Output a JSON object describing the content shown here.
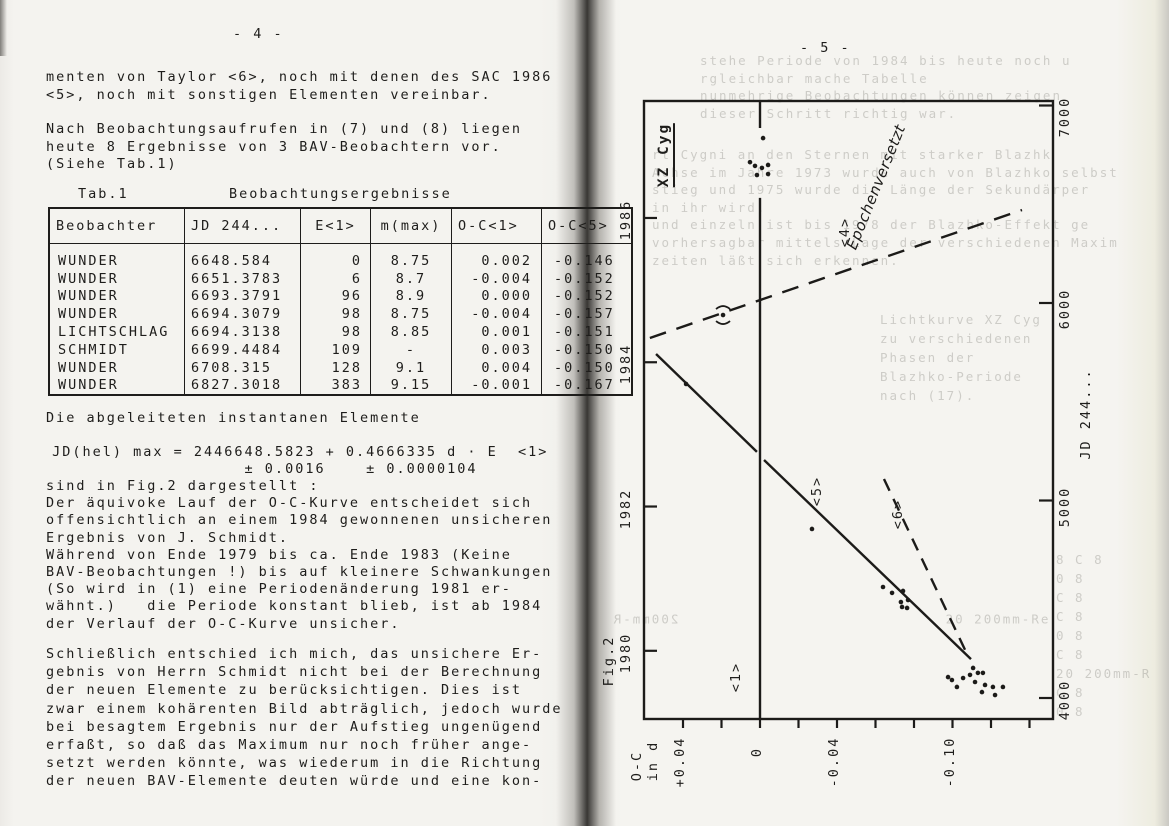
{
  "left_page": {
    "page_number": "- 4 -",
    "para1": [
      "menten von Taylor <6>, noch mit denen des SAC 1986",
      "<5>, noch mit sonstigen Elementen vereinbar."
    ],
    "para2": [
      "Nach Beobachtungsaufrufen in (7) und (8) liegen",
      "heute 8 Ergebnisse von 3 BAV-Beobachtern vor.",
      "(Siehe Tab.1)"
    ],
    "table": {
      "caption_label": "Tab.1",
      "caption_title": "Beobachtungsergebnisse",
      "headers": [
        "Beobachter",
        "JD 244...",
        "E<1>",
        "m(max)",
        "O-C<1>",
        "O-C<5>"
      ],
      "rows": [
        [
          "WUNDER",
          "6648.584",
          "0",
          "8.75",
          "0.002",
          "-0.146"
        ],
        [
          "WUNDER",
          "6651.3783",
          "6",
          "8.7",
          "-0.004",
          "-0.152"
        ],
        [
          "WUNDER",
          "6693.3791",
          "96",
          "8.9",
          "0.000",
          "-0.152"
        ],
        [
          "WUNDER",
          "6694.3079",
          "98",
          "8.75",
          "-0.004",
          "-0.157"
        ],
        [
          "LICHTSCHLAG",
          "6694.3138",
          "98",
          "8.85",
          "0.001",
          "-0.151"
        ],
        [
          "SCHMIDT",
          "6699.4484",
          "109",
          "-",
          "0.003",
          "-0.150"
        ],
        [
          "WUNDER",
          "6708.315",
          "128",
          "9.1",
          "0.004",
          "-0.150"
        ],
        [
          "WUNDER",
          "6827.3018",
          "383",
          "9.15",
          "-0.001",
          "-0.167"
        ]
      ]
    },
    "elements_intro": "Die abgeleiteten instantanen Elemente",
    "formula": [
      " JD(hel) max = 2446648.5823 + 0.4666335 d · E  <1>",
      "                    ± 0.0016    ± 0.0000104"
    ],
    "para3": [
      "sind in Fig.2 dargestellt :",
      "Der äquivoke Lauf der O-C-Kurve entscheidet sich",
      "offensichtlich an einem 1984 gewonnenen unsicheren",
      "Ergebnis von J. Schmidt.",
      "Während von Ende 1979 bis ca. Ende 1983 (Keine",
      "BAV-Beobachtungen !) bis auf kleinere Schwankungen",
      "(So wird in (1) eine Periodenänderung 1981 er-",
      "wähnt.)   die Periode konstant blieb, ist ab 1984",
      "der Verlauf der O-C-Kurve unsicher."
    ],
    "para4": [
      "Schließlich entschied ich mich, das unsichere Er-",
      "gebnis von Herrn Schmidt nicht bei der Berechnung",
      "der neuen Elemente zu berücksichtigen. Dies ist",
      "zwar einem kohärenten Bild abträglich, jedoch wurde",
      "bei besagtem Ergebnis nur der Aufstieg ungenügend",
      "erfaßt, so daß das Maximum nur noch früher ange-",
      "setzt werden könnte, was wiederum in die Richtung",
      "der neuen BAV-Elemente deuten würde und eine kon-"
    ]
  },
  "right_page": {
    "page_number": "- 5 -",
    "figure": {
      "title": "XZ Cyg",
      "fig_label": "Fig.2",
      "oc_axis_label": [
        "O-C",
        "in d"
      ],
      "jd_axis_label": "JD 244...",
      "label_l1": "<1>",
      "label_l4": "<4>",
      "label_l5": "<5>",
      "label_l6": "<6>",
      "label_epoch": "Epochenversetzt"
    },
    "bleedthrough": {
      "block_top": [
        "stehe Periode von 1984 bis heute noch u",
        "rgleichbar mache Tabelle",
        "nunmehrige Beobachtungen können zeigen",
        "dieser Schritt richtig war."
      ],
      "block_mid": [
        "rt Cygni an den Sternen mit starker Blazhk",
        "Achse im Jahre 1973 wurde auch von Blazhko selbst",
        "stieg und 1975 wurde die Länge der Sekundärper",
        "in ihr wird.",
        "und einzeln ist bis 1978 der Blazhko-Effekt ge",
        "vorhersagbar mittels Lage der verschiedenen Maxim",
        "zeiten läßt sich erkennen."
      ],
      "block_fig": [
        "Lichtkurve XZ Cyg",
        "zu verschiedenen",
        "Phasen der",
        "Blazhko-Periode",
        "nach (17)."
      ],
      "block_right": [
        "8 C 8",
        "0 8",
        "C 8",
        "C 8",
        "0 8",
        "C 8",
        "20 200mm-R",
        "C 8",
        "0 8"
      ],
      "frag_inside": "20 200mm-Re",
      "frag_mirror": "200mm-R"
    }
  },
  "chart_data": {
    "type": "scatter",
    "title": "XZ Cyg O-C diagram (rotated 90° on page)",
    "xlabel": "O-C in d",
    "ylabel": "JD 244...",
    "oc_axis": {
      "ticks": [
        0.04,
        0.02,
        0,
        -0.02,
        -0.04,
        -0.06,
        -0.08,
        -0.1,
        -0.12,
        -0.14
      ],
      "tick_labels": [
        [
          "0.04",
          "+0.04"
        ],
        [
          "0",
          "0"
        ],
        [
          "-0.04",
          "-0.04"
        ],
        [
          "-0.1",
          "-0.10"
        ]
      ],
      "range": [
        0.06,
        -0.153
      ]
    },
    "jd_axis": {
      "ticks": [
        7000,
        6000,
        5000,
        4000
      ],
      "tick_labels": [
        "7000",
        "6000",
        "5000",
        "4000"
      ],
      "range": [
        3895,
        7025
      ]
    },
    "year_axis": {
      "ticks": [
        1986,
        1984,
        1982,
        1980
      ],
      "tick_labels": [
        "1986",
        "1984",
        "1982",
        "1980"
      ]
    },
    "points": [
      {
        "oc": -0.0016,
        "jd": 6835
      },
      {
        "oc": 0.0052,
        "jd": 6713
      },
      {
        "oc": 0.0026,
        "jd": 6694
      },
      {
        "oc": -0.001,
        "jd": 6684
      },
      {
        "oc": -0.0042,
        "jd": 6699
      },
      {
        "oc": 0.0016,
        "jd": 6648
      },
      {
        "oc": -0.0042,
        "jd": 6653
      },
      {
        "oc": 0.0192,
        "jd": 5939,
        "uncertain": true
      },
      {
        "oc": 0.0384,
        "jd": 5590
      },
      {
        "oc": -0.027,
        "jd": 4856
      },
      {
        "oc": -0.0639,
        "jd": 4562
      },
      {
        "oc": -0.0686,
        "jd": 4532
      },
      {
        "oc": -0.0743,
        "jd": 4542
      },
      {
        "oc": -0.0732,
        "jd": 4486
      },
      {
        "oc": -0.0769,
        "jd": 4496
      },
      {
        "oc": -0.0738,
        "jd": 4461
      },
      {
        "oc": -0.0764,
        "jd": 4456
      },
      {
        "oc": -0.0977,
        "jd": 4106
      },
      {
        "oc": -0.0997,
        "jd": 4091
      },
      {
        "oc": -0.1023,
        "jd": 4056
      },
      {
        "oc": -0.1055,
        "jd": 4101
      },
      {
        "oc": -0.1091,
        "jd": 4117
      },
      {
        "oc": -0.1107,
        "jd": 4152
      },
      {
        "oc": -0.1132,
        "jd": 4127
      },
      {
        "oc": -0.1158,
        "jd": 4127
      },
      {
        "oc": -0.1117,
        "jd": 4081
      },
      {
        "oc": -0.1169,
        "jd": 4066
      },
      {
        "oc": -0.121,
        "jd": 4056
      },
      {
        "oc": -0.1262,
        "jd": 4056
      },
      {
        "oc": -0.1153,
        "jd": 4030
      },
      {
        "oc": -0.1221,
        "jd": 4015
      }
    ],
    "lines": [
      {
        "name": "<1>",
        "style": "solid",
        "segments": [
          [
            [
              0,
              7022
            ],
            [
              0,
              6886
            ]
          ],
          [
            [
              0,
              6532
            ],
            [
              0,
              3894
            ]
          ]
        ]
      },
      {
        "name": "<4>",
        "style": "dashed",
        "segments": [
          [
            [
              0.0572,
              5823
            ],
            [
              -0.1361,
              6471
            ]
          ]
        ]
      },
      {
        "name": "<5>",
        "style": "solid",
        "segments": [
          [
            [
              0.054,
              5742
            ],
            [
              0.0016,
              5246
            ]
          ],
          [
            [
              -0.0021,
              5205
            ],
            [
              -0.1096,
              4197
            ]
          ]
        ]
      },
      {
        "name": "<6>",
        "style": "dashed",
        "segments": [
          [
            [
              -0.0644,
              5109
            ],
            [
              -0.107,
              4234
            ]
          ]
        ]
      }
    ],
    "legend_position": "none",
    "grid": false
  }
}
